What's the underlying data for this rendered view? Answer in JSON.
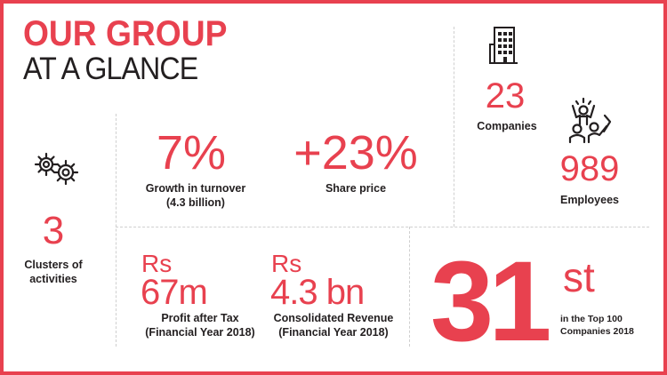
{
  "title": {
    "line1": "OUR GROUP",
    "line2": "AT A GLANCE"
  },
  "clusters": {
    "value": "3",
    "label_line1": "Clusters of",
    "label_line2": "activities",
    "icon": "gears-icon"
  },
  "growth": {
    "value": "7%",
    "label_line1": "Growth in turnover",
    "label_line2": "(4.3 billion)"
  },
  "share": {
    "value": "+23%",
    "label": "Share price"
  },
  "companies": {
    "value": "23",
    "label": "Companies",
    "icon": "building-icon"
  },
  "employees": {
    "value": "989",
    "label": "Employees",
    "icon": "people-icon"
  },
  "profit": {
    "currency": "Rs",
    "value": "67m",
    "label_line1": "Profit after Tax",
    "label_line2": "(Financial Year 2018)"
  },
  "revenue": {
    "currency": "Rs",
    "value": "4.3 bn",
    "label_line1": "Consolidated Revenue",
    "label_line2": "(Financial Year 2018)"
  },
  "ranking": {
    "value": "31",
    "suffix": "st",
    "label_line1": "in the Top 100",
    "label_line2": "Companies 2018"
  },
  "colors": {
    "accent": "#e8414f",
    "text": "#231f20",
    "divider": "#cfcfcf"
  }
}
